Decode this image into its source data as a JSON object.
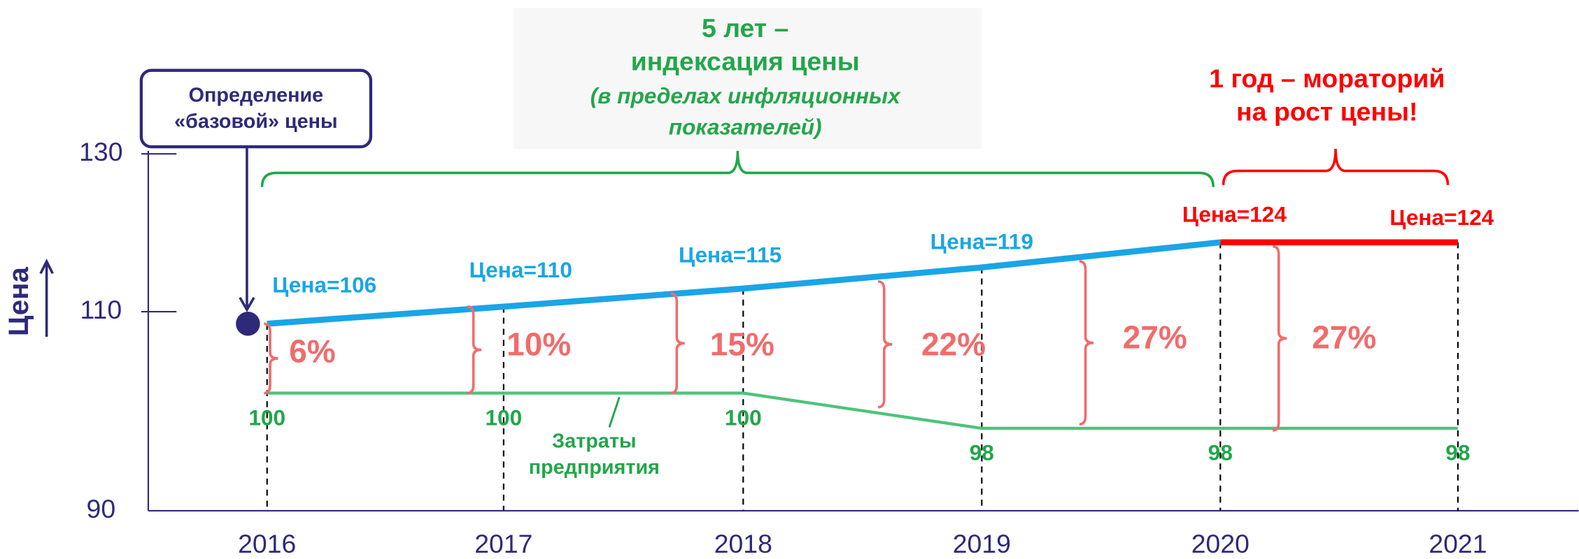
{
  "header": {
    "lines": [
      "5 лет –",
      "индексация цены"
    ],
    "note_lines": [
      "(в пределах инфляционных",
      "показателей)"
    ]
  },
  "moratorium": {
    "lines": [
      "1 год – мораторий",
      "на рост цены!"
    ]
  },
  "base_box": {
    "lines": [
      "Определение",
      "«базовой» цены"
    ]
  },
  "y_axis": {
    "label": "Цена",
    "ticks": [
      130,
      110,
      90
    ]
  },
  "years": [
    "2016",
    "2017",
    "2018",
    "2019",
    "2020",
    "2021"
  ],
  "price_labels": [
    "Цена=106",
    "Цена=110",
    "Цена=115",
    "Цена=119",
    "Цена=124",
    "Цена=124"
  ],
  "cost_labels": [
    "100",
    "100",
    "100",
    "98",
    "98",
    "98"
  ],
  "margin_labels": [
    "6%",
    "10%",
    "15%",
    "22%",
    "27%",
    "27%"
  ],
  "cost_caption": [
    "Затраты",
    "предприятия"
  ]
}
